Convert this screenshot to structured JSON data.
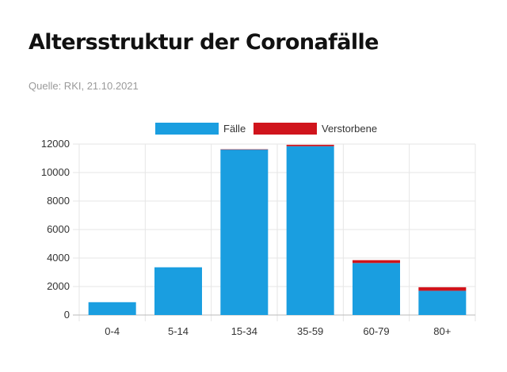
{
  "title": "Altersstruktur der Coronafälle",
  "source": "Quelle: RKI, 21.10.2021",
  "colors": {
    "cases": "#1a9ee0",
    "deaths": "#d0141c",
    "grid": "#e6e6e6",
    "axis": "#bbbbbb",
    "tick_text": "#333333"
  },
  "chart_data": {
    "type": "bar",
    "stacked": true,
    "categories": [
      "0-4",
      "5-14",
      "15-34",
      "35-59",
      "60-79",
      "80+"
    ],
    "series": [
      {
        "name": "Fälle",
        "color": "#1a9ee0",
        "values": [
          900,
          3350,
          11620,
          11850,
          3650,
          1700
        ]
      },
      {
        "name": "Verstorbene",
        "color": "#d0141c",
        "values": [
          0,
          0,
          10,
          100,
          200,
          250
        ]
      }
    ],
    "ylim": [
      0,
      12000
    ],
    "yticks": [
      0,
      2000,
      4000,
      6000,
      8000,
      10000,
      12000
    ],
    "xlabel": "",
    "ylabel": "",
    "grid": true,
    "legend_position": "top"
  }
}
